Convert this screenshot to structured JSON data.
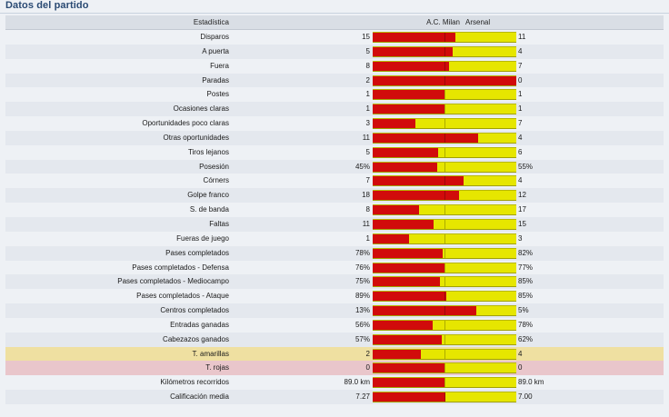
{
  "panel": {
    "title": "Datos del partido",
    "header": {
      "stat": "Estadística",
      "home": "A.C. Milan",
      "away": "Arsenal"
    },
    "colors": {
      "home": "#d10b0b",
      "away": "#e6e600",
      "yellow_highlight": "#efe0a1",
      "red_highlight": "#e9c6cb"
    }
  },
  "stats": [
    {
      "label": "Disparos",
      "home": "15",
      "away": "11",
      "home_share": 0.577,
      "highlight": ""
    },
    {
      "label": "A puerta",
      "home": "5",
      "away": "4",
      "home_share": 0.556,
      "highlight": ""
    },
    {
      "label": "Fuera",
      "home": "8",
      "away": "7",
      "home_share": 0.533,
      "highlight": ""
    },
    {
      "label": "Paradas",
      "home": "2",
      "away": "0",
      "home_share": 1.0,
      "highlight": ""
    },
    {
      "label": "Postes",
      "home": "1",
      "away": "1",
      "home_share": 0.5,
      "highlight": ""
    },
    {
      "label": "Ocasiones claras",
      "home": "1",
      "away": "1",
      "home_share": 0.5,
      "highlight": ""
    },
    {
      "label": "Oportunidades poco claras",
      "home": "3",
      "away": "7",
      "home_share": 0.3,
      "highlight": ""
    },
    {
      "label": "Otras oportunidades",
      "home": "11",
      "away": "4",
      "home_share": 0.733,
      "highlight": ""
    },
    {
      "label": "Tiros lejanos",
      "home": "5",
      "away": "6",
      "home_share": 0.455,
      "highlight": ""
    },
    {
      "label": "Posesión",
      "home": "45%",
      "away": "55%",
      "home_share": 0.45,
      "highlight": ""
    },
    {
      "label": "Córners",
      "home": "7",
      "away": "4",
      "home_share": 0.636,
      "highlight": ""
    },
    {
      "label": "Golpe franco",
      "home": "18",
      "away": "12",
      "home_share": 0.6,
      "highlight": ""
    },
    {
      "label": "S. de banda",
      "home": "8",
      "away": "17",
      "home_share": 0.32,
      "highlight": ""
    },
    {
      "label": "Faltas",
      "home": "11",
      "away": "15",
      "home_share": 0.423,
      "highlight": ""
    },
    {
      "label": "Fueras de juego",
      "home": "1",
      "away": "3",
      "home_share": 0.25,
      "highlight": ""
    },
    {
      "label": "Pases completados",
      "home": "78%",
      "away": "82%",
      "home_share": 0.4875,
      "highlight": ""
    },
    {
      "label": "Pases completados - Defensa",
      "home": "76%",
      "away": "77%",
      "home_share": 0.497,
      "highlight": ""
    },
    {
      "label": "Pases completados - Mediocampo",
      "home": "75%",
      "away": "85%",
      "home_share": 0.469,
      "highlight": ""
    },
    {
      "label": "Pases completados - Ataque",
      "home": "89%",
      "away": "85%",
      "home_share": 0.511,
      "highlight": ""
    },
    {
      "label": "Centros completados",
      "home": "13%",
      "away": "5%",
      "home_share": 0.722,
      "highlight": ""
    },
    {
      "label": "Entradas ganadas",
      "home": "56%",
      "away": "78%",
      "home_share": 0.418,
      "highlight": ""
    },
    {
      "label": "Cabezazos ganados",
      "home": "57%",
      "away": "62%",
      "home_share": 0.479,
      "highlight": ""
    },
    {
      "label": "T. amarillas",
      "home": "2",
      "away": "4",
      "home_share": 0.333,
      "highlight": "yellow"
    },
    {
      "label": "T. rojas",
      "home": "0",
      "away": "0",
      "home_share": 0.5,
      "highlight": "red"
    },
    {
      "label": "Kilómetros recorridos",
      "home": "89.0 km",
      "away": "89.0 km",
      "home_share": 0.5,
      "highlight": ""
    },
    {
      "label": "Calificación media",
      "home": "7.27",
      "away": "7.00",
      "home_share": 0.509,
      "highlight": ""
    }
  ]
}
